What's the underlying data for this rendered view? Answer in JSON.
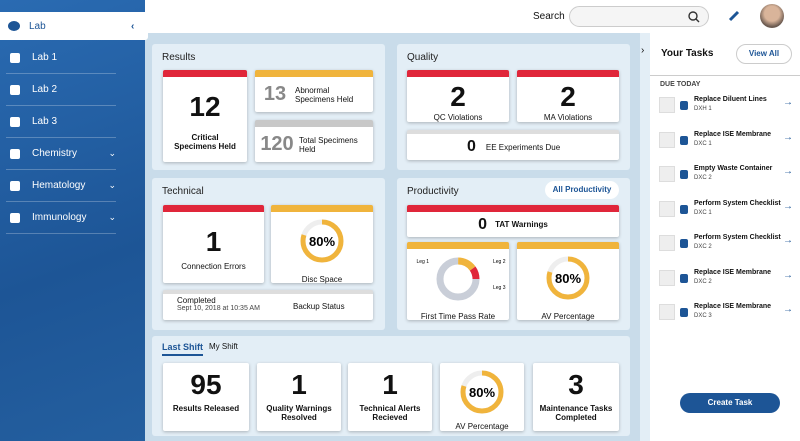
{
  "sidebar": {
    "header": "Lab",
    "items": [
      {
        "label": "Lab 1"
      },
      {
        "label": "Lab 2"
      },
      {
        "label": "Lab 3"
      },
      {
        "label": "Chemistry",
        "expandable": true
      },
      {
        "label": "Hematology",
        "expandable": true
      },
      {
        "label": "Immunology",
        "expandable": true
      }
    ]
  },
  "topbar": {
    "search_label": "Search"
  },
  "results": {
    "title": "Results",
    "critical": {
      "value": 12,
      "label": "Critical Specimens Held"
    },
    "abnormal": {
      "value": 13,
      "label": "Abnormal Specimens Held"
    },
    "total": {
      "value": 120,
      "label": "Total Specimens Held"
    }
  },
  "quality": {
    "title": "Quality",
    "qc": {
      "value": 2,
      "label": "QC Violations"
    },
    "ma": {
      "value": 2,
      "label": "MA Violations"
    },
    "ee": {
      "value": 0,
      "label": "EE Experiments Due"
    }
  },
  "technical": {
    "title": "Technical",
    "connection": {
      "value": 1,
      "label": "Connection Errors"
    },
    "disc_space": {
      "value": 80,
      "text": "80%",
      "label": "Disc Space"
    },
    "backup": {
      "status": "Completed",
      "date": "Sept 10, 2018 at 10:35 AM",
      "label": "Backup Status"
    }
  },
  "productivity": {
    "title": "Productivity",
    "button": "All Productivity",
    "tat": {
      "value": 0,
      "label": "TAT Warnings"
    },
    "pass_rate": {
      "label": "First Time Pass Rate",
      "segments": [
        {
          "name": "Leg 1",
          "value": 75,
          "color": "#c9ced8"
        },
        {
          "name": "Leg 2",
          "value": 15,
          "color": "#f0b43c"
        },
        {
          "name": "Leg 3",
          "value": 10,
          "color": "#e0263a"
        }
      ]
    },
    "av": {
      "value": 80,
      "text": "80%",
      "label": "AV Percentage"
    }
  },
  "shift": {
    "tabs": [
      "Last Shift",
      "My Shift"
    ],
    "released": {
      "value": 95,
      "label": "Results Released"
    },
    "quality_warnings": {
      "value": 1,
      "label": "Quality Warnings Resolved"
    },
    "technical_alerts": {
      "value": 1,
      "label": "Technical Alerts Recieved"
    },
    "av": {
      "value": 80,
      "text": "80%",
      "label": "AV Percentage"
    },
    "maintenance": {
      "value": 3,
      "label": "Maintenance Tasks Completed"
    }
  },
  "tasks": {
    "title": "Your Tasks",
    "view_all": "View All",
    "section": "DUE TODAY",
    "items": [
      {
        "title": "Replace Diluent Lines",
        "code": "DXH 1"
      },
      {
        "title": "Replace ISE Membrane",
        "code": "DXC 1"
      },
      {
        "title": "Empty Waste Container",
        "code": "DXC 2"
      },
      {
        "title": "Perform System Checklist",
        "code": "DXC 1"
      },
      {
        "title": "Perform System Checklist",
        "code": "DXC 2"
      },
      {
        "title": "Replace ISE Membrane",
        "code": "DXC 2"
      },
      {
        "title": "Replace ISE Membrane",
        "code": "DXC 3"
      }
    ],
    "create": "Create Task"
  }
}
